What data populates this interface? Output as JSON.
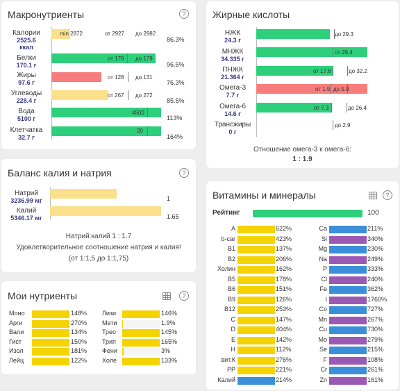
{
  "macro": {
    "title": "Макронутриенты",
    "help": "?",
    "rows": [
      {
        "name": "Калории",
        "amount": "2525.6",
        "unit": "ккал",
        "min_label": "min 2872",
        "from_label": "от 2927",
        "to_label": "до 2982",
        "pct": "86.3%",
        "color": "yellow"
      },
      {
        "name": "Белки",
        "amount": "170.1 г",
        "unit": "",
        "min_label": "",
        "from_label": "от 176",
        "to_label": "до 179",
        "pct": "96.6%",
        "color": "green"
      },
      {
        "name": "Жиры",
        "amount": "97.6 г",
        "unit": "",
        "min_label": "",
        "from_label": "от 128",
        "to_label": "до 131",
        "pct": "76.3%",
        "color": "red"
      },
      {
        "name": "Углеводы",
        "amount": "228.4 г",
        "unit": "",
        "min_label": "",
        "from_label": "от 267",
        "to_label": "до 272",
        "pct": "85.5%",
        "color": "yellow"
      },
      {
        "name": "Вода",
        "amount": "5100 г",
        "unit": "",
        "min_label": "",
        "from_label": "",
        "to_label": "4500",
        "pct": "113%",
        "color": "green"
      },
      {
        "name": "Клетчатка",
        "amount": "32.7 г",
        "unit": "",
        "min_label": "",
        "from_label": "",
        "to_label": "20",
        "pct": "164%",
        "color": "green"
      }
    ]
  },
  "fatty": {
    "title": "Жирные кислоты",
    "rows": [
      {
        "name": "НЖК",
        "amount": "24.3 г",
        "from_label": "",
        "to_label": "до 29.3",
        "color": "green"
      },
      {
        "name": "МНЖК",
        "amount": "34.335 г",
        "from_label": "от 26.4",
        "to_label": "",
        "color": "green"
      },
      {
        "name": "ПНЖК",
        "amount": "21.364 г",
        "from_label": "от 17.6",
        "to_label": "до 32.2",
        "color": "green"
      },
      {
        "name": "Омега-3",
        "amount": "7.7 г",
        "from_label": "от 1.5",
        "to_label": "до 5.9",
        "color": "red"
      },
      {
        "name": "Омега-6",
        "amount": "14.6 г",
        "from_label": "от 7.3",
        "to_label": "до 26.4",
        "color": "green"
      },
      {
        "name": "Трансжиры",
        "amount": "0 г",
        "from_label": "",
        "to_label": "до 2.9",
        "color": "green"
      }
    ],
    "ratio_label": "Отношение омега-3 к омега-6:",
    "ratio_value": "1 : 1.9"
  },
  "balance": {
    "title": "Баланс калия и натрия",
    "help": "?",
    "rows": [
      {
        "name": "Натрий",
        "amount": "3236.99 мг",
        "value": "1"
      },
      {
        "name": "Калий",
        "amount": "5346.17 мг",
        "value": "1.65"
      }
    ],
    "ratio": "Натрий:калий 1 : 1.7",
    "note": "Удовлетворительное соотношение натрия и калия! (от 1:1,5 до 1:1,75)"
  },
  "my": {
    "title": "Мои нутриенты",
    "help": "?",
    "left": [
      {
        "name": "Моно",
        "pct": "148%"
      },
      {
        "name": "Арги",
        "pct": "270%"
      },
      {
        "name": "Вали",
        "pct": "134%"
      },
      {
        "name": "Гист",
        "pct": "150%"
      },
      {
        "name": "Изол",
        "pct": "181%"
      },
      {
        "name": "Лейц",
        "pct": "122%"
      }
    ],
    "right": [
      {
        "name": "Лизи",
        "pct": "146%"
      },
      {
        "name": "Мети",
        "pct": "1.9%"
      },
      {
        "name": "Трео",
        "pct": "145%"
      },
      {
        "name": "Трип",
        "pct": "165%"
      },
      {
        "name": "Фени",
        "pct": "3%"
      },
      {
        "name": "Холе",
        "pct": "133%"
      }
    ]
  },
  "vitamins": {
    "title": "Витамины и минералы",
    "help": "?",
    "rating_label": "Рейтинг",
    "rating_value": "100",
    "left": [
      {
        "name": "A",
        "pct": "622%"
      },
      {
        "name": "b-car",
        "pct": "423%"
      },
      {
        "name": "B1",
        "pct": "137%"
      },
      {
        "name": "B2",
        "pct": "206%"
      },
      {
        "name": "Холин",
        "pct": "162%"
      },
      {
        "name": "B5",
        "pct": "178%"
      },
      {
        "name": "B6",
        "pct": "151%"
      },
      {
        "name": "B9",
        "pct": "126%"
      },
      {
        "name": "B12",
        "pct": "253%"
      },
      {
        "name": "C",
        "pct": "147%"
      },
      {
        "name": "D",
        "pct": "404%"
      },
      {
        "name": "E",
        "pct": "142%"
      },
      {
        "name": "H",
        "pct": "112%"
      },
      {
        "name": "вит.К",
        "pct": "276%"
      },
      {
        "name": "PP",
        "pct": "221%"
      },
      {
        "name": "Калий",
        "pct": "214%"
      }
    ],
    "right": [
      {
        "name": "Ca",
        "pct": "211%"
      },
      {
        "name": "Si",
        "pct": "340%"
      },
      {
        "name": "Mg",
        "pct": "230%"
      },
      {
        "name": "Na",
        "pct": "249%"
      },
      {
        "name": "P",
        "pct": "333%"
      },
      {
        "name": "Cl",
        "pct": "240%"
      },
      {
        "name": "Fe",
        "pct": "362%"
      },
      {
        "name": "I",
        "pct": "1760%"
      },
      {
        "name": "Co",
        "pct": "727%"
      },
      {
        "name": "Mn",
        "pct": "267%"
      },
      {
        "name": "Cu",
        "pct": "730%"
      },
      {
        "name": "Mo",
        "pct": "279%"
      },
      {
        "name": "Se",
        "pct": "215%"
      },
      {
        "name": "F",
        "pct": "108%"
      },
      {
        "name": "Cr",
        "pct": "261%"
      },
      {
        "name": "Zn",
        "pct": "161%"
      }
    ]
  },
  "colors": {
    "green": "#2ecf7b",
    "yellow": "#fbe08b",
    "red": "#f77d7d",
    "vit_yellow": "#f4d300",
    "vit_blue": "#3b8fd9",
    "vit_purple": "#9b59b6",
    "name_blue": "#3a3a8c"
  }
}
